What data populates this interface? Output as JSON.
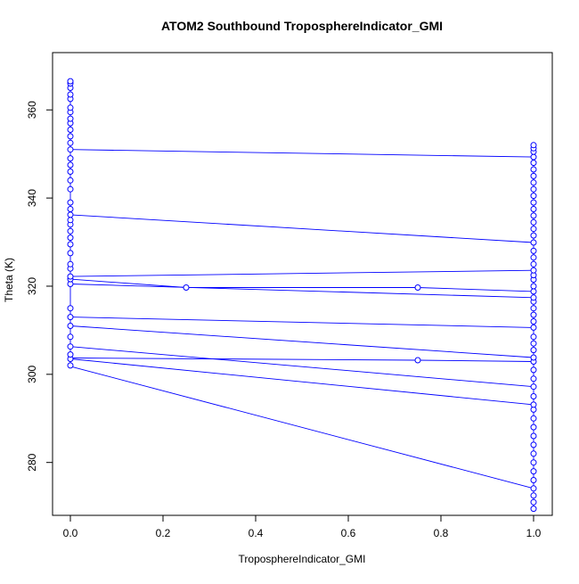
{
  "chart_data": {
    "type": "scatter",
    "title": "ATOM2 Southbound TroposphereIndicator_GMI",
    "xlabel": "TroposphereIndicator_GMI",
    "ylabel": "Theta (K)",
    "xlim": [
      0,
      1
    ],
    "ylim": [
      268,
      373
    ],
    "x_ticks": [
      0.0,
      0.2,
      0.4,
      0.6,
      0.8,
      1.0
    ],
    "x_tick_labels": [
      "0.0",
      "0.2",
      "0.4",
      "0.6",
      "0.8",
      "1.0"
    ],
    "y_ticks": [
      280,
      300,
      320,
      340,
      360
    ],
    "y_tick_labels": [
      "280",
      "300",
      "320",
      "340",
      "360"
    ],
    "grid": false,
    "color": "#0000ff",
    "marker": "open-circle",
    "line_segments": [
      {
        "x": [
          0,
          1
        ],
        "y": [
          351.0,
          349.3
        ]
      },
      {
        "x": [
          0,
          1
        ],
        "y": [
          336.2,
          329.9
        ]
      },
      {
        "x": [
          0,
          1
        ],
        "y": [
          322.2,
          323.6
        ]
      },
      {
        "x": [
          0,
          0.25,
          0.75,
          1
        ],
        "y": [
          321.6,
          319.7,
          319.7,
          318.8
        ]
      },
      {
        "x": [
          0,
          1
        ],
        "y": [
          320.5,
          317.4
        ]
      },
      {
        "x": [
          0,
          1
        ],
        "y": [
          313.0,
          310.6
        ]
      },
      {
        "x": [
          0,
          1
        ],
        "y": [
          311.0,
          303.8
        ]
      },
      {
        "x": [
          0,
          1
        ],
        "y": [
          306.3,
          297.2
        ]
      },
      {
        "x": [
          0,
          0.75,
          1
        ],
        "y": [
          303.7,
          303.2,
          302.9
        ]
      },
      {
        "x": [
          0,
          1
        ],
        "y": [
          301.8,
          274.1
        ]
      },
      {
        "x": [
          0,
          1
        ],
        "y": [
          303.5,
          293.1
        ]
      },
      {
        "x": [
          0,
          0
        ],
        "y": [
          302.0,
          366.5
        ]
      },
      {
        "x": [
          1,
          1
        ],
        "y": [
          269.5,
          352.0
        ]
      }
    ],
    "points": [
      {
        "x": 0.25,
        "y": 319.7
      },
      {
        "x": 0.75,
        "y": 319.7
      },
      {
        "x": 0.75,
        "y": 303.2
      },
      {
        "x": 0,
        "y": 302.0
      },
      {
        "x": 0,
        "y": 303.5
      },
      {
        "x": 0,
        "y": 304.5
      },
      {
        "x": 0,
        "y": 306.3
      },
      {
        "x": 0,
        "y": 308.5
      },
      {
        "x": 0,
        "y": 311.0
      },
      {
        "x": 0,
        "y": 313.0
      },
      {
        "x": 0,
        "y": 315.0
      },
      {
        "x": 0,
        "y": 320.5
      },
      {
        "x": 0,
        "y": 321.6
      },
      {
        "x": 0,
        "y": 322.2
      },
      {
        "x": 0,
        "y": 324.0
      },
      {
        "x": 0,
        "y": 325.0
      },
      {
        "x": 0,
        "y": 327.5
      },
      {
        "x": 0,
        "y": 329.5
      },
      {
        "x": 0,
        "y": 331.0
      },
      {
        "x": 0,
        "y": 332.5
      },
      {
        "x": 0,
        "y": 334.0
      },
      {
        "x": 0,
        "y": 335.0
      },
      {
        "x": 0,
        "y": 336.2
      },
      {
        "x": 0,
        "y": 337.5
      },
      {
        "x": 0,
        "y": 339.0
      },
      {
        "x": 0,
        "y": 342.0
      },
      {
        "x": 0,
        "y": 344.0
      },
      {
        "x": 0,
        "y": 346.0
      },
      {
        "x": 0,
        "y": 347.5
      },
      {
        "x": 0,
        "y": 349.0
      },
      {
        "x": 0,
        "y": 351.0
      },
      {
        "x": 0,
        "y": 352.5
      },
      {
        "x": 0,
        "y": 354.0
      },
      {
        "x": 0,
        "y": 355.5
      },
      {
        "x": 0,
        "y": 357.0
      },
      {
        "x": 0,
        "y": 358.0
      },
      {
        "x": 0,
        "y": 359.5
      },
      {
        "x": 0,
        "y": 360.5
      },
      {
        "x": 0,
        "y": 362.5
      },
      {
        "x": 0,
        "y": 363.5
      },
      {
        "x": 0,
        "y": 365.0
      },
      {
        "x": 0,
        "y": 366.0
      },
      {
        "x": 0,
        "y": 366.5
      },
      {
        "x": 1,
        "y": 269.5
      },
      {
        "x": 1,
        "y": 271.0
      },
      {
        "x": 1,
        "y": 272.5
      },
      {
        "x": 1,
        "y": 274.1
      },
      {
        "x": 1,
        "y": 276.0
      },
      {
        "x": 1,
        "y": 278.0
      },
      {
        "x": 1,
        "y": 280.0
      },
      {
        "x": 1,
        "y": 282.0
      },
      {
        "x": 1,
        "y": 284.0
      },
      {
        "x": 1,
        "y": 286.0
      },
      {
        "x": 1,
        "y": 288.0
      },
      {
        "x": 1,
        "y": 290.0
      },
      {
        "x": 1,
        "y": 292.0
      },
      {
        "x": 1,
        "y": 293.1
      },
      {
        "x": 1,
        "y": 295.0
      },
      {
        "x": 1,
        "y": 297.2
      },
      {
        "x": 1,
        "y": 299.0
      },
      {
        "x": 1,
        "y": 301.0
      },
      {
        "x": 1,
        "y": 302.9
      },
      {
        "x": 1,
        "y": 303.8
      },
      {
        "x": 1,
        "y": 305.5
      },
      {
        "x": 1,
        "y": 307.0
      },
      {
        "x": 1,
        "y": 308.5
      },
      {
        "x": 1,
        "y": 310.6
      },
      {
        "x": 1,
        "y": 312.0
      },
      {
        "x": 1,
        "y": 313.5
      },
      {
        "x": 1,
        "y": 315.0
      },
      {
        "x": 1,
        "y": 316.5
      },
      {
        "x": 1,
        "y": 317.4
      },
      {
        "x": 1,
        "y": 318.8
      },
      {
        "x": 1,
        "y": 320.0
      },
      {
        "x": 1,
        "y": 321.5
      },
      {
        "x": 1,
        "y": 322.5
      },
      {
        "x": 1,
        "y": 323.6
      },
      {
        "x": 1,
        "y": 325.0
      },
      {
        "x": 1,
        "y": 326.5
      },
      {
        "x": 1,
        "y": 328.0
      },
      {
        "x": 1,
        "y": 329.9
      },
      {
        "x": 1,
        "y": 331.5
      },
      {
        "x": 1,
        "y": 333.0
      },
      {
        "x": 1,
        "y": 334.5
      },
      {
        "x": 1,
        "y": 336.0
      },
      {
        "x": 1,
        "y": 337.5
      },
      {
        "x": 1,
        "y": 339.0
      },
      {
        "x": 1,
        "y": 340.5
      },
      {
        "x": 1,
        "y": 342.0
      },
      {
        "x": 1,
        "y": 343.5
      },
      {
        "x": 1,
        "y": 345.0
      },
      {
        "x": 1,
        "y": 346.5
      },
      {
        "x": 1,
        "y": 348.0
      },
      {
        "x": 1,
        "y": 349.3
      },
      {
        "x": 1,
        "y": 350.5
      },
      {
        "x": 1,
        "y": 351.3
      },
      {
        "x": 1,
        "y": 352.0
      }
    ]
  }
}
